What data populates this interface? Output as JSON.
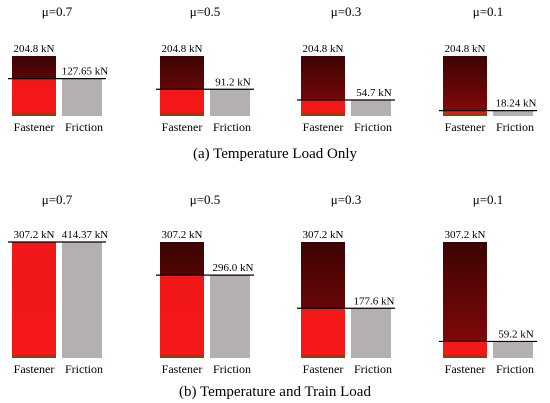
{
  "chart_data": [
    {
      "type": "bar",
      "caption": "(a) Temperature Load Only",
      "panels": [
        {
          "mu_label": "μ=0.7",
          "fastener": 204.8,
          "friction": 127.65,
          "fastener_label": "204.8 kN",
          "friction_label": "127.65 kN"
        },
        {
          "mu_label": "μ=0.5",
          "fastener": 204.8,
          "friction": 91.2,
          "fastener_label": "204.8 kN",
          "friction_label": "91.2 kN"
        },
        {
          "mu_label": "μ=0.3",
          "fastener": 204.8,
          "friction": 54.7,
          "fastener_label": "204.8 kN",
          "friction_label": "54.7 kN"
        },
        {
          "mu_label": "μ=0.1",
          "fastener": 204.8,
          "friction": 18.24,
          "fastener_label": "204.8 kN",
          "friction_label": "18.24 kN"
        }
      ],
      "categories": [
        "Fastener",
        "Friction"
      ]
    },
    {
      "type": "bar",
      "caption": "(b) Temperature and Train Load",
      "panels": [
        {
          "mu_label": "μ=0.7",
          "fastener": 307.2,
          "friction": 414.37,
          "fastener_label": "307.2 kN",
          "friction_label": "414.37 kN"
        },
        {
          "mu_label": "μ=0.5",
          "fastener": 307.2,
          "friction": 296.0,
          "fastener_label": "307.2 kN",
          "friction_label": "296.0 kN"
        },
        {
          "mu_label": "μ=0.3",
          "fastener": 307.2,
          "friction": 177.6,
          "fastener_label": "307.2 kN",
          "friction_label": "177.6 kN"
        },
        {
          "mu_label": "μ=0.1",
          "fastener": 307.2,
          "friction": 59.2,
          "fastener_label": "307.2 kN",
          "friction_label": "59.2 kN"
        }
      ],
      "categories": [
        "Fastener",
        "Friction"
      ]
    }
  ],
  "colors": {
    "fastener_dark": "#4a0505",
    "fastener_red": "#ff1a1a",
    "friction_gray": "#b4b0b0",
    "friction_excess": "#383838",
    "line": "#000000"
  }
}
